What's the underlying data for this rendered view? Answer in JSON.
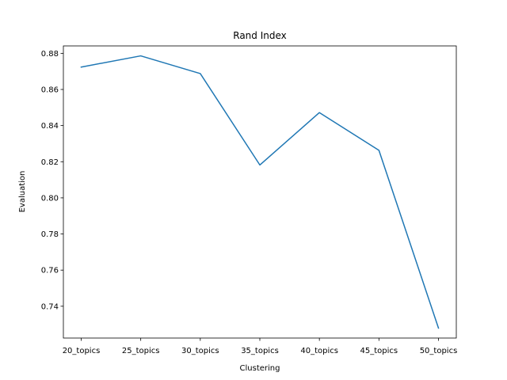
{
  "chart_data": {
    "type": "line",
    "title": "Rand Index",
    "xlabel": "Clustering",
    "ylabel": "Evaluation",
    "categories": [
      "20_topics",
      "25_topics",
      "30_topics",
      "35_topics",
      "40_topics",
      "45_topics",
      "50_topics"
    ],
    "series": [
      {
        "values": [
          0.8724,
          0.8786,
          0.8688,
          0.8182,
          0.8472,
          0.8263,
          0.7279
        ],
        "color": "#1f77b4"
      }
    ],
    "yticks": [
      "0.74",
      "0.76",
      "0.78",
      "0.80",
      "0.82",
      "0.84",
      "0.86",
      "0.88"
    ],
    "ylim": [
      0.7224,
      0.8841
    ],
    "grid": false,
    "legend": "none"
  }
}
